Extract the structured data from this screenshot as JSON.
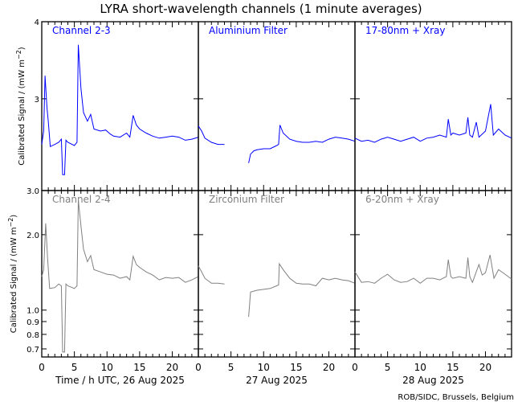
{
  "chart_data": {
    "type": "line",
    "title": "LYRA short-wavelength channels (1 minute averages)",
    "ylabel": {
      "main": "Calibrated Signal / (mW m",
      "sup": "-2",
      "end": ")"
    },
    "credit": "ROB/SIDC, Brussels, Belgium",
    "days": [
      {
        "xlabel": "Time / h UTC, 26 Aug 2025"
      },
      {
        "xlabel": "27 Aug 2025"
      },
      {
        "xlabel": "28 Aug 2025"
      }
    ],
    "xlim": [
      0,
      24
    ],
    "xticks": [
      "0",
      "5",
      "10",
      "15",
      "20"
    ],
    "rows": [
      {
        "color": "#0000ff",
        "ylim": [
          2.13,
          4.0
        ],
        "yscale": "log",
        "yticks": [
          {
            "v": 3,
            "label": "3"
          },
          {
            "v": 4,
            "label": "4"
          }
        ],
        "panels": [
          {
            "label": "Channel 2-3",
            "points": [
              [
                0,
                2.53
              ],
              [
                0.3,
                2.66
              ],
              [
                0.5,
                3.27
              ],
              [
                0.8,
                2.9
              ],
              [
                1.0,
                2.76
              ],
              [
                1.3,
                2.51
              ],
              [
                2,
                2.53
              ],
              [
                2.6,
                2.55
              ],
              [
                3,
                2.58
              ],
              [
                3.2,
                2.26
              ],
              [
                3.5,
                2.26
              ],
              [
                3.7,
                2.57
              ],
              [
                4,
                2.55
              ],
              [
                5,
                2.52
              ],
              [
                5.4,
                2.55
              ],
              [
                5.6,
                3.67
              ],
              [
                6,
                3.12
              ],
              [
                6.4,
                2.85
              ],
              [
                7,
                2.76
              ],
              [
                7.5,
                2.83
              ],
              [
                8,
                2.68
              ],
              [
                9,
                2.66
              ],
              [
                9.8,
                2.67
              ],
              [
                10.5,
                2.63
              ],
              [
                11,
                2.61
              ],
              [
                12,
                2.6
              ],
              [
                13,
                2.64
              ],
              [
                13.5,
                2.6
              ],
              [
                14,
                2.82
              ],
              [
                14.5,
                2.72
              ],
              [
                15,
                2.68
              ],
              [
                16,
                2.64
              ],
              [
                17,
                2.61
              ],
              [
                18,
                2.59
              ],
              [
                19,
                2.6
              ],
              [
                20,
                2.61
              ],
              [
                21,
                2.6
              ],
              [
                22,
                2.57
              ],
              [
                23,
                2.58
              ],
              [
                24,
                2.6
              ]
            ]
          },
          {
            "label": "Aluminium Filter",
            "points": [
              [
                0,
                2.71
              ],
              [
                0.5,
                2.66
              ],
              [
                1,
                2.59
              ],
              [
                2,
                2.55
              ],
              [
                3,
                2.53
              ],
              [
                4,
                2.53
              ],
              null,
              [
                7.7,
                2.36
              ],
              [
                8,
                2.44
              ],
              [
                8.5,
                2.47
              ],
              [
                9,
                2.48
              ],
              [
                10,
                2.49
              ],
              [
                11,
                2.49
              ],
              [
                12,
                2.52
              ],
              [
                12.3,
                2.53
              ],
              [
                12.5,
                2.72
              ],
              [
                13,
                2.64
              ],
              [
                14,
                2.58
              ],
              [
                15,
                2.56
              ],
              [
                16,
                2.55
              ],
              [
                17,
                2.55
              ],
              [
                18,
                2.56
              ],
              [
                19,
                2.55
              ],
              [
                20,
                2.58
              ],
              [
                21,
                2.6
              ],
              [
                22,
                2.59
              ],
              [
                23,
                2.58
              ],
              [
                24,
                2.56
              ]
            ]
          },
          {
            "label": "17-80nm + Xray",
            "points": [
              [
                0,
                2.59
              ],
              [
                1,
                2.56
              ],
              [
                2,
                2.57
              ],
              [
                3,
                2.55
              ],
              [
                4,
                2.58
              ],
              [
                5,
                2.6
              ],
              [
                6,
                2.58
              ],
              [
                7,
                2.56
              ],
              [
                8,
                2.58
              ],
              [
                9,
                2.6
              ],
              [
                10,
                2.56
              ],
              [
                11,
                2.59
              ],
              [
                12,
                2.6
              ],
              [
                13,
                2.62
              ],
              [
                14,
                2.6
              ],
              [
                14.3,
                2.78
              ],
              [
                14.7,
                2.62
              ],
              [
                15,
                2.64
              ],
              [
                16,
                2.62
              ],
              [
                17,
                2.64
              ],
              [
                17.3,
                2.8
              ],
              [
                17.6,
                2.62
              ],
              [
                18,
                2.6
              ],
              [
                18.6,
                2.75
              ],
              [
                19,
                2.6
              ],
              [
                20,
                2.66
              ],
              [
                20.8,
                2.94
              ],
              [
                21.2,
                2.62
              ],
              [
                22,
                2.68
              ],
              [
                23,
                2.62
              ],
              [
                24,
                2.59
              ]
            ]
          }
        ]
      },
      {
        "color": "#808080",
        "ylim": [
          0.65,
          3.0
        ],
        "yscale": "log",
        "yticks": [
          {
            "v": 0.7,
            "label": "0.7"
          },
          {
            "v": 0.8,
            "label": "0.8"
          },
          {
            "v": 0.9,
            "label": "0.9"
          },
          {
            "v": 1.0,
            "label": "1.0"
          },
          {
            "v": 2.0,
            "label": "2.0"
          },
          {
            "v": 3.0,
            "label": "3.0"
          }
        ],
        "panels": [
          {
            "label": "Channel 2-4",
            "points": [
              [
                0,
                1.36
              ],
              [
                0.3,
                1.45
              ],
              [
                0.6,
                2.22
              ],
              [
                0.9,
                1.6
              ],
              [
                1.2,
                1.22
              ],
              [
                2,
                1.23
              ],
              [
                2.6,
                1.27
              ],
              [
                3,
                1.25
              ],
              [
                3.2,
                0.68
              ],
              [
                3.5,
                0.68
              ],
              [
                3.7,
                1.27
              ],
              [
                4,
                1.25
              ],
              [
                5,
                1.22
              ],
              [
                5.4,
                1.25
              ],
              [
                5.6,
                2.75
              ],
              [
                6,
                2.17
              ],
              [
                6.4,
                1.75
              ],
              [
                7,
                1.56
              ],
              [
                7.5,
                1.65
              ],
              [
                8,
                1.45
              ],
              [
                9,
                1.42
              ],
              [
                10,
                1.39
              ],
              [
                11,
                1.38
              ],
              [
                12,
                1.34
              ],
              [
                13,
                1.36
              ],
              [
                13.5,
                1.32
              ],
              [
                14,
                1.64
              ],
              [
                14.5,
                1.52
              ],
              [
                15,
                1.48
              ],
              [
                16,
                1.42
              ],
              [
                17,
                1.38
              ],
              [
                18,
                1.32
              ],
              [
                19,
                1.35
              ],
              [
                20,
                1.34
              ],
              [
                21,
                1.35
              ],
              [
                22,
                1.29
              ],
              [
                23,
                1.32
              ],
              [
                24,
                1.36
              ]
            ]
          },
          {
            "label": "Zirconium Filter",
            "points": [
              [
                0,
                1.5
              ],
              [
                0.5,
                1.42
              ],
              [
                1,
                1.34
              ],
              [
                2,
                1.28
              ],
              [
                3,
                1.28
              ],
              [
                4,
                1.27
              ],
              null,
              [
                7.7,
                0.94
              ],
              [
                8,
                1.18
              ],
              [
                9,
                1.2
              ],
              [
                10,
                1.21
              ],
              [
                11,
                1.22
              ],
              [
                12,
                1.25
              ],
              [
                12.3,
                1.26
              ],
              [
                12.4,
                1.53
              ],
              [
                13,
                1.45
              ],
              [
                14,
                1.34
              ],
              [
                15,
                1.28
              ],
              [
                16,
                1.27
              ],
              [
                17,
                1.27
              ],
              [
                18,
                1.25
              ],
              [
                19,
                1.34
              ],
              [
                20,
                1.32
              ],
              [
                21,
                1.34
              ],
              [
                22,
                1.32
              ],
              [
                23,
                1.31
              ],
              [
                24,
                1.28
              ]
            ]
          },
          {
            "label": "6-20nm + Xray",
            "points": [
              [
                0,
                1.42
              ],
              [
                1,
                1.29
              ],
              [
                2,
                1.3
              ],
              [
                3,
                1.28
              ],
              [
                4,
                1.34
              ],
              [
                5,
                1.39
              ],
              [
                6,
                1.32
              ],
              [
                7,
                1.29
              ],
              [
                8,
                1.3
              ],
              [
                9,
                1.34
              ],
              [
                10,
                1.28
              ],
              [
                11,
                1.34
              ],
              [
                12,
                1.34
              ],
              [
                13,
                1.32
              ],
              [
                14,
                1.36
              ],
              [
                14.3,
                1.59
              ],
              [
                14.7,
                1.36
              ],
              [
                15,
                1.34
              ],
              [
                16,
                1.36
              ],
              [
                17,
                1.34
              ],
              [
                17.3,
                1.62
              ],
              [
                17.6,
                1.36
              ],
              [
                18,
                1.29
              ],
              [
                19,
                1.52
              ],
              [
                19.5,
                1.38
              ],
              [
                20,
                1.41
              ],
              [
                20.7,
                1.66
              ],
              [
                21.3,
                1.34
              ],
              [
                22,
                1.45
              ],
              [
                23,
                1.39
              ],
              [
                24,
                1.33
              ]
            ]
          }
        ]
      }
    ]
  }
}
